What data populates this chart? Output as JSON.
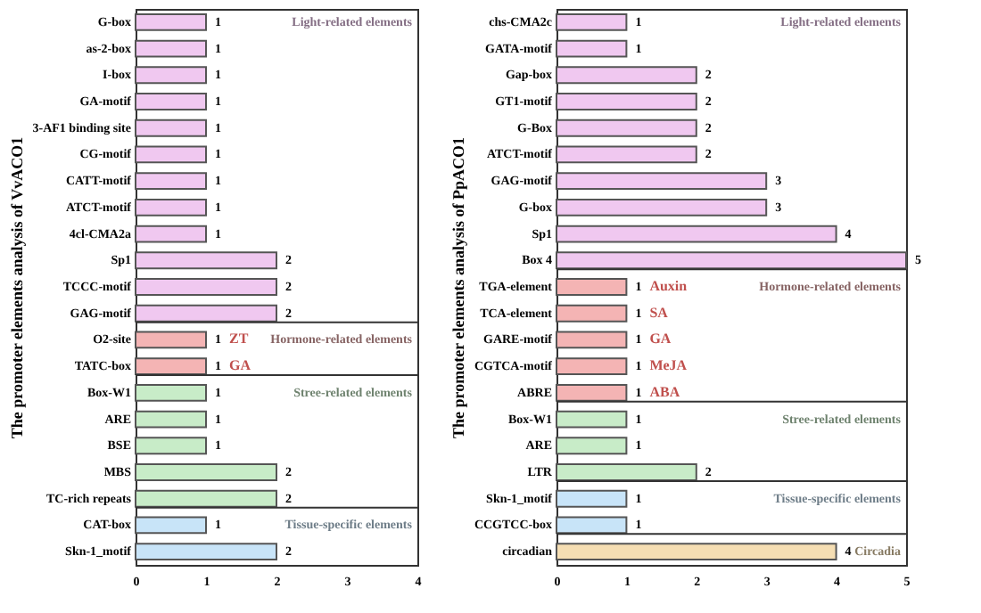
{
  "chart_data": [
    {
      "type": "bar",
      "orientation": "horizontal",
      "ylabel": "The promoter elements analysis of VvACO1",
      "categories": [
        "G-box",
        "as-2-box",
        "I-box",
        "GA-motif",
        "3-AF1 binding site",
        "CG-motif",
        "CATT-motif",
        "ATCT-motif",
        "4cl-CMA2a",
        "Sp1",
        "TCCC-motif",
        "GAG-motif",
        "O2-site",
        "TATC-box",
        "Box-W1",
        "ARE",
        "BSE",
        "MBS",
        "TC-rich repeats",
        "CAT-box",
        "Skn-1_motif"
      ],
      "values": [
        1,
        1,
        1,
        1,
        1,
        1,
        1,
        1,
        1,
        2,
        2,
        2,
        1,
        1,
        1,
        1,
        1,
        2,
        2,
        1,
        2
      ],
      "colors": [
        "#f0c8f0",
        "#f0c8f0",
        "#f0c8f0",
        "#f0c8f0",
        "#f0c8f0",
        "#f0c8f0",
        "#f0c8f0",
        "#f0c8f0",
        "#f0c8f0",
        "#f0c8f0",
        "#f0c8f0",
        "#f0c8f0",
        "#f4b4b4",
        "#f4b4b4",
        "#c8ecc8",
        "#c8ecc8",
        "#c8ecc8",
        "#c8ecc8",
        "#c8ecc8",
        "#c8e4f8",
        "#c8e4f8"
      ],
      "xlim": [
        0,
        4
      ],
      "xticks": [
        0,
        1,
        2,
        3,
        4
      ],
      "data_labels": true,
      "grid": false,
      "annotations": [
        "Light-related elements",
        "Hormone-related elements",
        "ZT",
        "GA",
        "Stree-related elements",
        "Tissue-specific elements"
      ]
    },
    {
      "type": "bar",
      "orientation": "horizontal",
      "ylabel": "The promoter elements analysis of PpACO1",
      "categories": [
        "chs-CMA2c",
        "GATA-motif",
        "Gap-box",
        "GT1-motif",
        "G-Box",
        "ATCT-motif",
        "GAG-motif",
        "G-box",
        "Sp1",
        "Box 4",
        "TGA-element",
        "TCA-element",
        "GARE-motif",
        "CGTCA-motif",
        "ABRE",
        "Box-W1",
        "ARE",
        "LTR",
        "Skn-1_motif",
        "CCGTCC-box",
        "circadian"
      ],
      "values": [
        1,
        1,
        2,
        2,
        2,
        2,
        3,
        3,
        4,
        5,
        1,
        1,
        1,
        1,
        1,
        1,
        1,
        2,
        1,
        1,
        4
      ],
      "colors": [
        "#f0c8f0",
        "#f0c8f0",
        "#f0c8f0",
        "#f0c8f0",
        "#f0c8f0",
        "#f0c8f0",
        "#f0c8f0",
        "#f0c8f0",
        "#f0c8f0",
        "#f0c8f0",
        "#f4b4b4",
        "#f4b4b4",
        "#f4b4b4",
        "#f4b4b4",
        "#f4b4b4",
        "#c8ecc8",
        "#c8ecc8",
        "#c8ecc8",
        "#c8e4f8",
        "#c8e4f8",
        "#f5deb3"
      ],
      "xlim": [
        0,
        5
      ],
      "xticks": [
        0,
        1,
        2,
        3,
        4,
        5
      ],
      "data_labels": true,
      "grid": false,
      "annotations": [
        "Light-related elements",
        "Hormone-related elements",
        "Auxin",
        "SA",
        "GA",
        "MeJA",
        "ABA",
        "Stree-related elements",
        "Tissue-specific elements",
        "Circadia"
      ]
    }
  ]
}
